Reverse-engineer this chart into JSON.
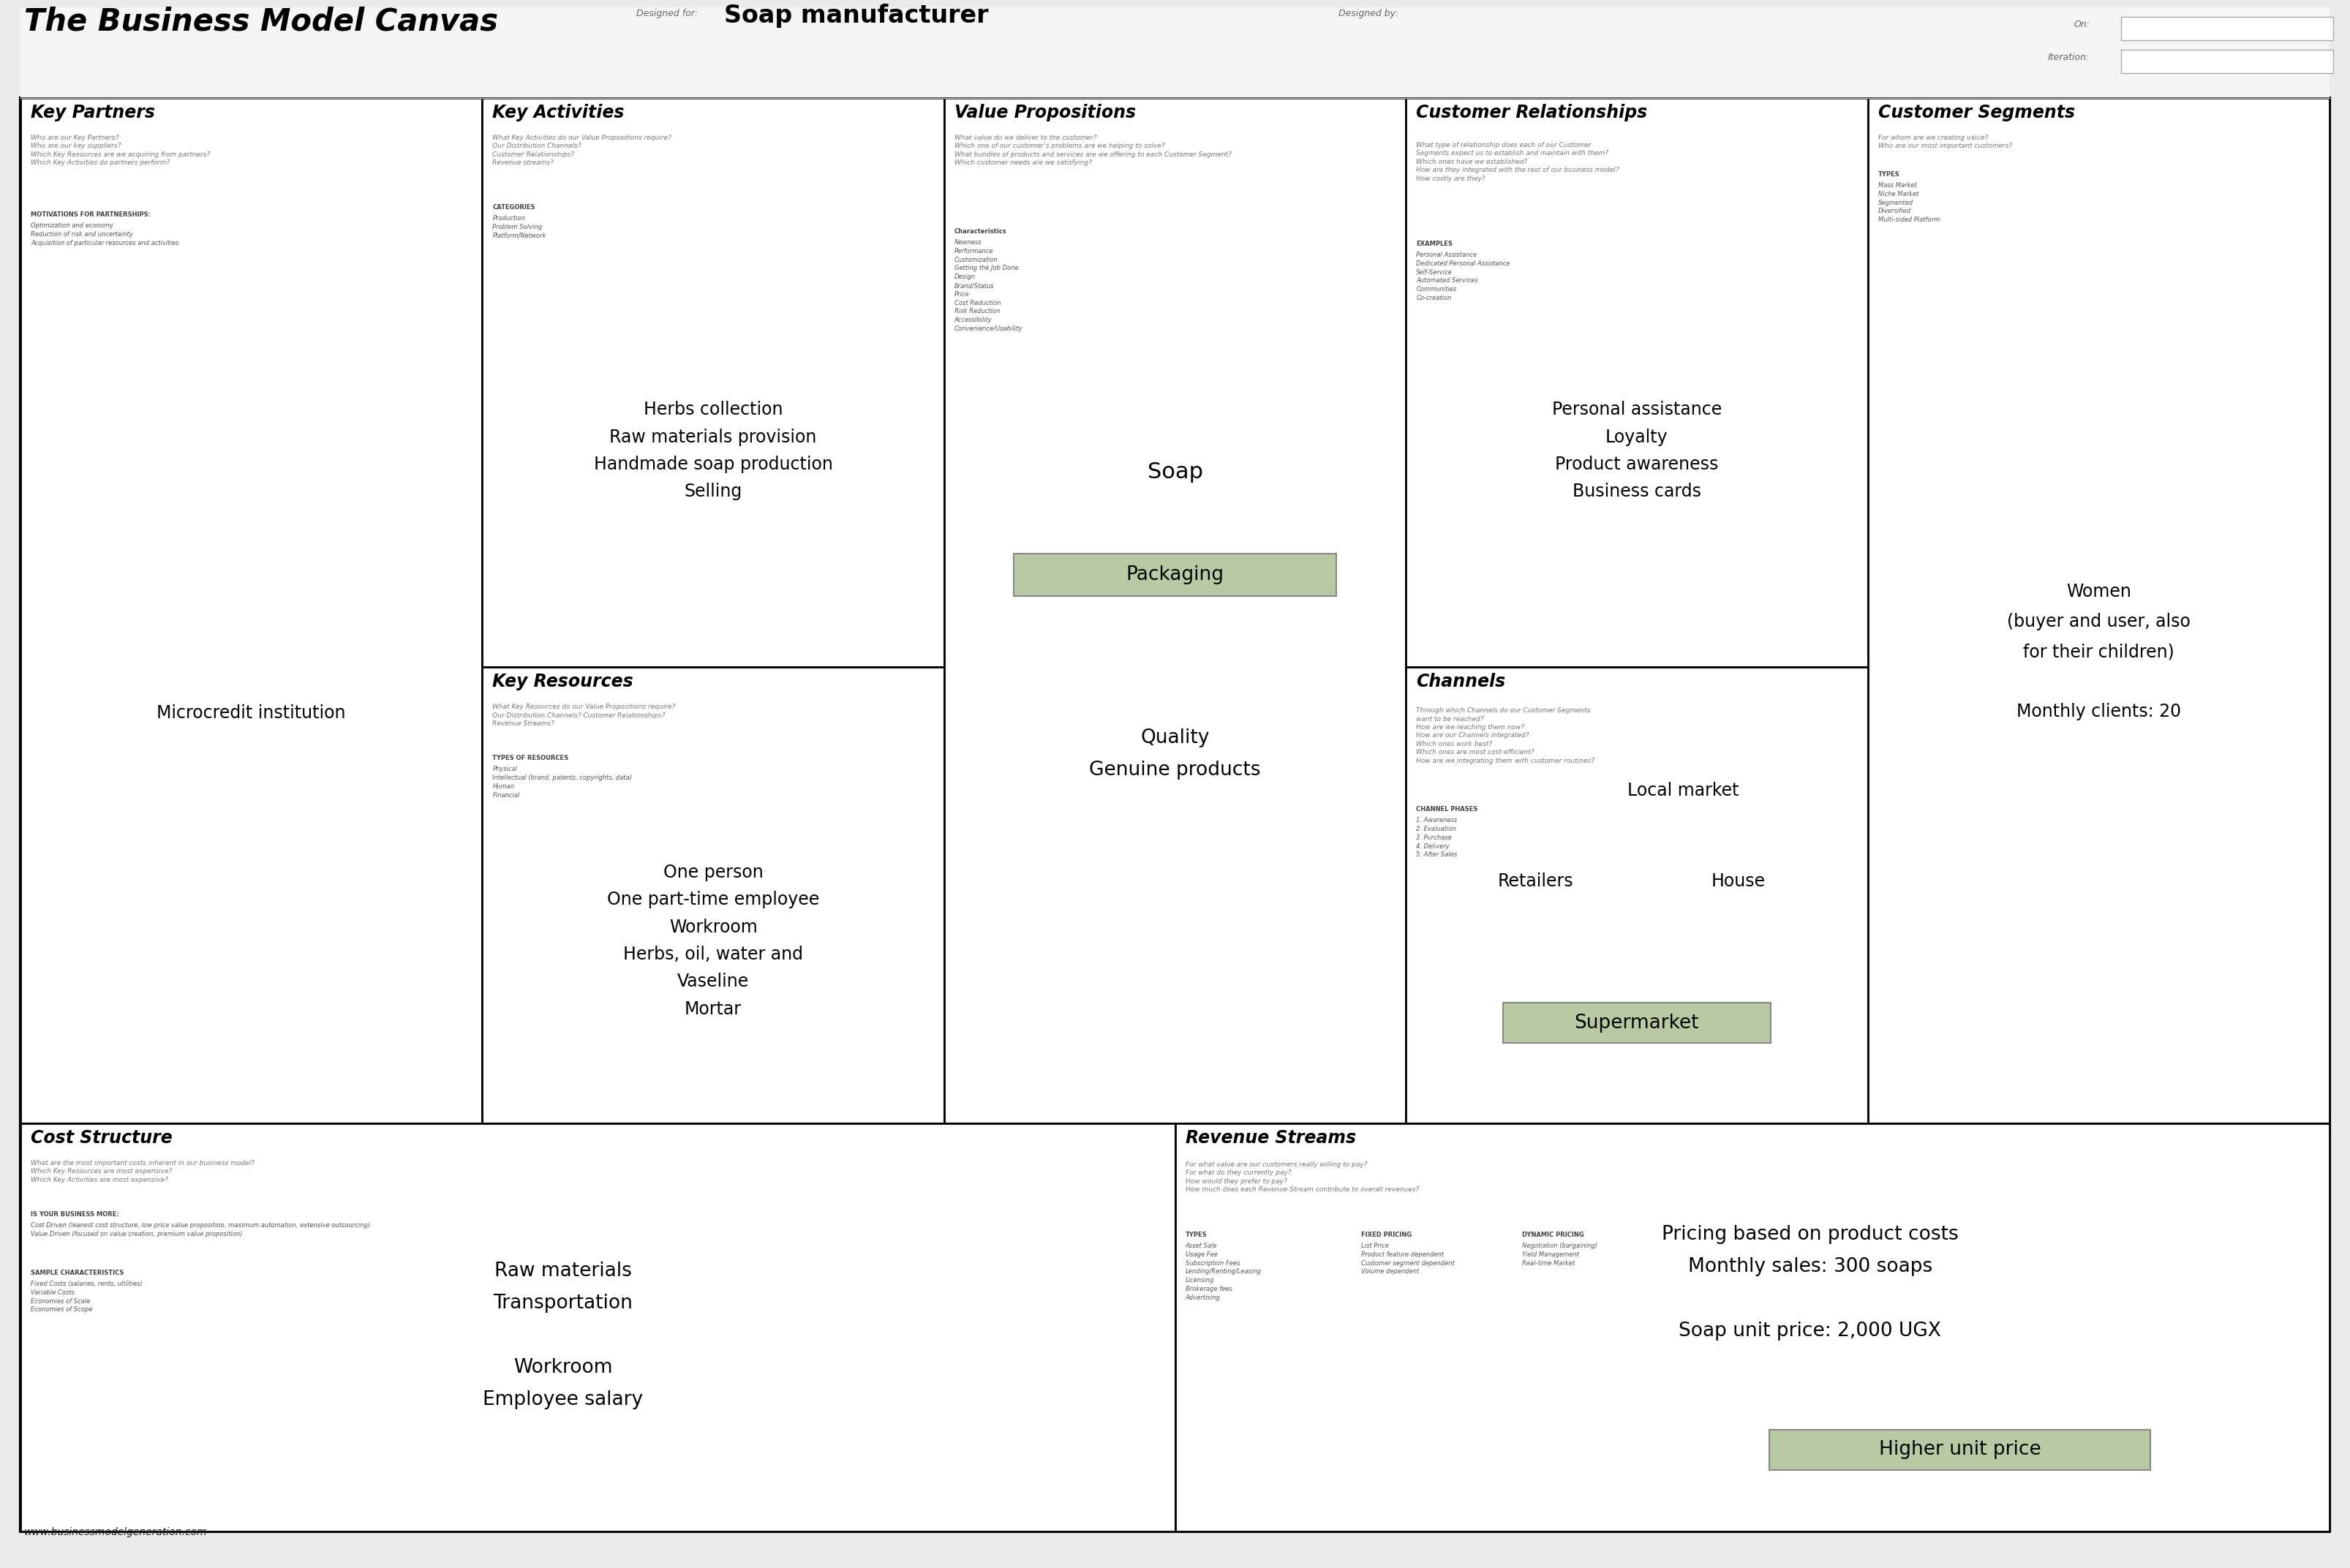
{
  "title": "The Business Model Canvas",
  "designed_for_label": "Designed for:",
  "designed_for_value": "Soap manufacturer",
  "designed_by_label": "Designed by:",
  "on_label": "On:",
  "iteration_label": "Iteration:",
  "bg_color": "#ebebeb",
  "canvas_bg": "#ffffff",
  "highlight_box_color": "#b8c9a3",
  "footer_text": "www.businessmodelgeneration.com",
  "sections": {
    "key_partners": {
      "title": "Key Partners",
      "questions": "Who are our Key Partners?\nWho are our key suppliers?\nWhich Key Resources are we acquiring from partners?\nWhich Key Activities do partners perform?",
      "motivations_title": "MOTIVATIONS FOR PARTNERSHIPS:",
      "motivations": "Optimization and economy\nReduction of risk and uncertainty\nAcquisition of particular resources and activities",
      "main_content": "Microcredit institution"
    },
    "key_activities": {
      "title": "Key Activities",
      "questions": "What Key Activities do our Value Propositions require?\nOur Distribution Channels?\nCustomer Relationships?\nRevenue streams?",
      "categories_title": "CATEGORIES",
      "categories": "Production\nProblem Solving\nPlatform/Network",
      "main_content": "Herbs collection\nRaw materials provision\nHandmade soap production\nSelling"
    },
    "key_resources": {
      "title": "Key Resources",
      "questions": "What Key Resources do our Value Propositions require?\nOur Distribution Channels? Customer Relationships?\nRevenue Streams?",
      "types_title": "TYPES OF RESOURCES",
      "types": "Physical\nIntellectual (brand, patents, copyrights, data)\nHuman\nFinancial",
      "main_content": "One person\nOne part-time employee\nWorkroom\nHerbs, oil, water and\nVaseline\nMortar"
    },
    "value_propositions": {
      "title": "Value Propositions",
      "questions": "What value do we deliver to the customer?\nWhich one of our customer's problems are we helping to solve?\nWhat bundles of products and services are we offering to each Customer Segment?\nWhich customer needs are we satisfying?",
      "characteristics_title": "Characteristics",
      "characteristics": "Newness\nPerformance\nCustomization\nGetting the Job Done\nDesign\nBrand/Status\nPrice\nCost Reduction\nRisk Reduction\nAccessibility\nConvenience/Usability",
      "main_content": "Soap",
      "highlight_content": "Packaging",
      "sub_content": "Quality\nGenuine products"
    },
    "customer_relationships": {
      "title": "Customer Relationships",
      "questions": "What type of relationship does each of our Customer\nSegments expect us to establish and maintain with them?\nWhich ones have we established?\nHow are they integrated with the rest of our business model?\nHow costly are they?",
      "examples_title": "EXAMPLES",
      "examples": "Personal Assistance\nDedicated Personal Assistance\nSelf-Service\nAutomated Services\nCommunities\nCo-creation",
      "main_content": "Personal assistance\nLoyalty\nProduct awareness\nBusiness cards"
    },
    "channels": {
      "title": "Channels",
      "questions": "Through which Channels do our Customer Segments\nwant to be reached?\nHow are we reaching them now?\nHow are our Channels integrated?\nWhich ones work best?\nWhich ones are most cost-efficient?\nHow are we integrating them with customer routines?",
      "phases_title": "CHANNEL PHASES",
      "phases": "1. Awareness\n2. Evaluation\n3. Purchase\n4. Delivery\n5. After Sales",
      "local_market": "Local market",
      "retailers": "Retailers",
      "house": "House",
      "highlight_content": "Supermarket"
    },
    "customer_segments": {
      "title": "Customer Segments",
      "questions": "For whom are we creating value?\nWho are our most important customers?",
      "types_title": "TYPES",
      "types": "Mass Market\nNiche Market\nSegmented\nDiversified\nMulti-sided Platform",
      "main_content": "Women\n(buyer and user, also\nfor their children)\n\nMonthly clients: 20"
    },
    "cost_structure": {
      "title": "Cost Structure",
      "questions": "What are the most important costs inherent in our business model?\nWhich Key Resources are most expensive?\nWhich Key Activities are most expensive?",
      "is_cost_title": "IS YOUR BUSINESS MORE:",
      "is_cost": "Cost Driven (leanest cost structure, low price value proposition, maximum automation, extensive outsourcing)\nValue Driven (focused on value creation, premium value proposition)",
      "sample_title": "SAMPLE CHARACTERISTICS",
      "sample": "Fixed Costs (salaries, rents, utilities)\nVariable Costs\nEconomies of Scale\nEconomies of Scope",
      "main_content": "Raw materials\nTransportation\n\nWorkroom\nEmployee salary"
    },
    "revenue_streams": {
      "title": "Revenue Streams",
      "questions": "For what value are our customers really willing to pay?\nFor what do they currently pay?\nHow would they prefer to pay?\nHow much does each Revenue Stream contribute to overall revenues?",
      "types_title": "TYPES",
      "types": "Asset Sale\nUsage Fee\nSubscription Fees\nLending/Renting/Leasing\nLicensing\nBrokerage fees\nAdvertising",
      "fixed_title": "FIXED PRICING",
      "fixed": "List Price\nProduct feature dependent\nCustomer segment dependent\nVolume dependent",
      "dynamic_title": "DYNAMIC PRICING",
      "dynamic": "Negotiation (bargaining)\nYield Management\nReal-time Market",
      "main_content": "Pricing based on product costs\nMonthly sales: 300 soaps\n\nSoap unit price: 2,000 UGX",
      "highlight_content": "Higher unit price"
    }
  }
}
